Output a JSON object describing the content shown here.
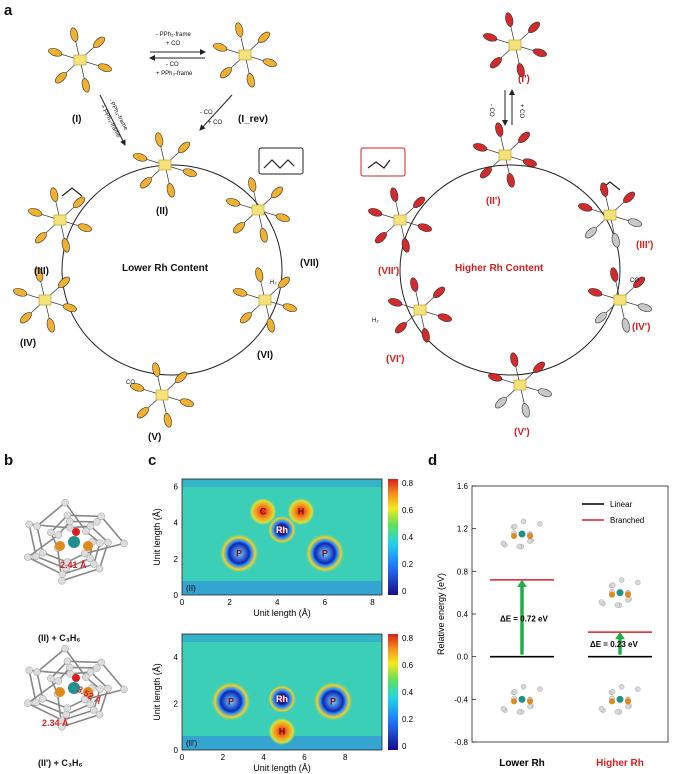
{
  "panels": {
    "a": "a",
    "b": "b",
    "c": "c",
    "d": "d"
  },
  "panel_a": {
    "left_cycle_title": "Lower Rh Content",
    "right_cycle_title": "Higher Rh Content",
    "left_species": [
      "(I)",
      "(I_rev)",
      "(II)",
      "(III)",
      "(IV)",
      "(V)",
      "(VI)",
      "(VII)"
    ],
    "right_species": [
      "(I')",
      "(II')",
      "(III')",
      "(IV')",
      "(V')",
      "(VI')",
      "(VII')"
    ],
    "eq_top_1": "- PPh₃-frame",
    "eq_top_2": "+ CO",
    "eq_top_3": "- CO",
    "eq_top_4": "+ PPh₃-frame",
    "eq_diag_1": "- PPh₃-frame",
    "eq_diag_2": "+ PPh₃-frame",
    "eq_small_1": "- CO",
    "eq_small_2": "+ CO",
    "co_label_left": "CO",
    "h2_label_left": "H₂",
    "co_label_right": "CO",
    "h2_label_right": "H₂",
    "ligand_colors": {
      "linear": "#f0b030",
      "branched": "#d32b2b",
      "grey": "#c8c8c8"
    }
  },
  "panel_b": {
    "top_label": "(II) + C₃H₆",
    "top_distance": "2.41 Å",
    "bottom_label": "(II') + C₃H₆",
    "bottom_distance_1": "2.34 Å",
    "bottom_distance_2": "3.52 Å"
  },
  "panel_c": {
    "top_tag": "(II)",
    "bottom_tag": "(II')",
    "xlabel": "Unit length (Å)",
    "ylabel": "Unit length (Å)",
    "colorbar_ticks": [
      "0.8",
      "0.6",
      "0.4",
      "0.2",
      "0"
    ],
    "top_atoms": [
      "C",
      "H",
      "Rh",
      "P",
      "P"
    ],
    "bottom_atoms": [
      "Rh",
      "H",
      "P",
      "P"
    ]
  },
  "chart_data": [
    {
      "type": "heatmap",
      "title": "",
      "xlabel": "Unit length (Å)",
      "ylabel": "Unit length (Å)",
      "xlim": [
        0,
        8.4
      ],
      "ylim": [
        0,
        6.4
      ],
      "xticks": [
        "0",
        "2",
        "4",
        "6",
        "8"
      ],
      "yticks": [
        "0",
        "2",
        "4",
        "6"
      ],
      "colorbar": [
        0,
        0.8
      ],
      "labels": [
        {
          "text": "C",
          "x": 3.4,
          "y": 4.6
        },
        {
          "text": "H",
          "x": 5.0,
          "y": 4.6
        },
        {
          "text": "Rh",
          "x": 4.2,
          "y": 3.6
        },
        {
          "text": "P",
          "x": 2.4,
          "y": 2.3
        },
        {
          "text": "P",
          "x": 6.0,
          "y": 2.3
        }
      ]
    },
    {
      "type": "heatmap",
      "title": "",
      "xlabel": "Unit length (Å)",
      "ylabel": "Unit length (Å)",
      "xlim": [
        0,
        9.8
      ],
      "ylim": [
        0,
        5.0
      ],
      "xticks": [
        "0",
        "2",
        "4",
        "6",
        "8"
      ],
      "yticks": [
        "0",
        "2",
        "4"
      ],
      "colorbar": [
        0,
        0.8
      ],
      "labels": [
        {
          "text": "Rh",
          "x": 4.9,
          "y": 2.2
        },
        {
          "text": "H",
          "x": 4.9,
          "y": 0.8
        },
        {
          "text": "P",
          "x": 2.4,
          "y": 2.1
        },
        {
          "text": "P",
          "x": 7.4,
          "y": 2.1
        }
      ]
    },
    {
      "type": "bar",
      "title": "",
      "xlabel": "",
      "ylabel": "Relative energy (eV)",
      "ylim": [
        -0.8,
        1.6
      ],
      "yticks": [
        "1.6",
        "1.2",
        "0.8",
        "0.4",
        "0.0",
        "-0.4",
        "-0.8"
      ],
      "categories": [
        "Lower Rh",
        "Higher Rh"
      ],
      "series": [
        {
          "name": "Linear",
          "color": "#000000",
          "values": [
            0.0,
            0.0
          ]
        },
        {
          "name": "Branched",
          "color": "#e02020",
          "values": [
            0.72,
            0.23
          ]
        }
      ],
      "annotations": [
        "ΔE = 0.72 eV",
        "ΔE = 0.23 eV"
      ],
      "legend": "top-right"
    }
  ],
  "panel_d": {
    "ylabel": "Relative energy (eV)",
    "legend_linear": "Linear",
    "legend_branched": "Branched",
    "delta_low": "0.72 eV",
    "delta_high": "0.23 eV",
    "delta_prefix": "ΔE =",
    "cat_low": "Lower Rh",
    "cat_high": "Higher Rh"
  }
}
